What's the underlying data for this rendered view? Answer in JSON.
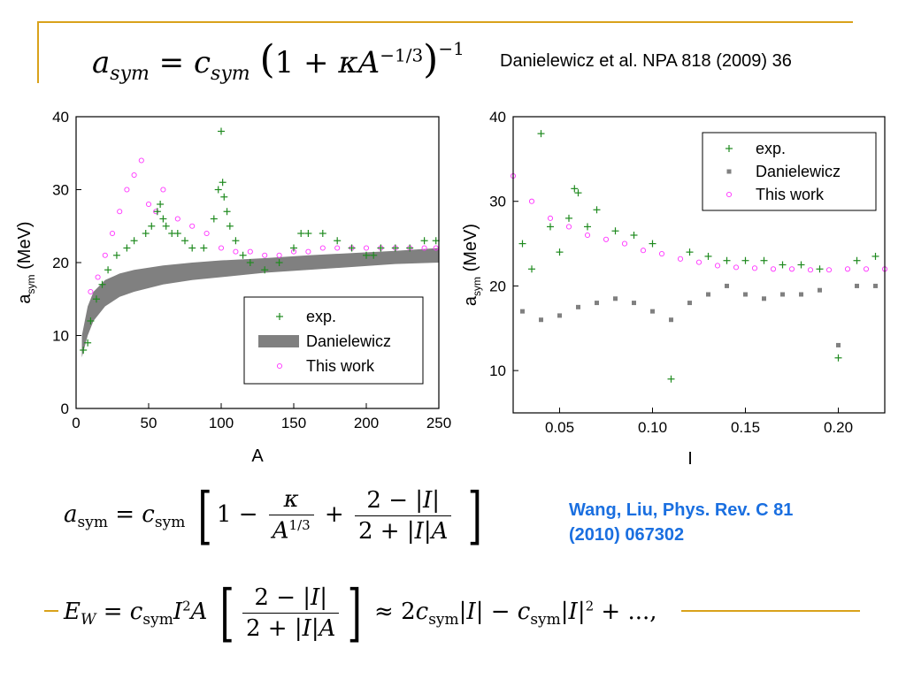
{
  "header": {
    "formula_top": "a_sym = c_sym (1 + κA^{-1/3})^{-1}",
    "citation": "Danielewicz et al. NPA 818 (2009) 36"
  },
  "reference": {
    "line1": "Wang, Liu, Phys. Rev. C 81",
    "line2": "(2010) 067302",
    "color": "#1a6fe0"
  },
  "formula_mid": "a_sym = c_sym [1 − κ/A^{1/3} + (2−|I|)/(2+|I|A)]",
  "formula_bottom": "E_W = c_sym I^2 A [(2−|I|)/(2+|I|A)] ≈ 2c_sym|I| − c_sym|I|^2 + ...,",
  "colors": {
    "accent": "#d9a21b",
    "exp": "#1f8a1f",
    "danielewicz": "#808080",
    "this_work": "#ff33ff"
  },
  "chart_data": [
    {
      "type": "scatter",
      "xlabel": "A",
      "ylabel": "a_sym (MeV)",
      "xlim": [
        0,
        250
      ],
      "ylim": [
        0,
        40
      ],
      "xticks": [
        "0",
        "50",
        "100",
        "150",
        "200",
        "250"
      ],
      "yticks": [
        "0",
        "10",
        "20",
        "30",
        "40"
      ],
      "legend_position": "bottom-right",
      "legend": [
        "exp.",
        "Danielewicz",
        "This work"
      ],
      "series": [
        {
          "name": "exp.",
          "x": [
            5,
            8,
            10,
            14,
            18,
            22,
            28,
            35,
            40,
            48,
            52,
            56,
            58,
            60,
            62,
            66,
            70,
            75,
            80,
            88,
            95,
            98,
            100,
            101,
            102,
            104,
            106,
            110,
            115,
            120,
            130,
            140,
            150,
            155,
            160,
            170,
            180,
            190,
            200,
            205,
            210,
            220,
            230,
            240,
            248
          ],
          "y": [
            8,
            9,
            12,
            15,
            17,
            19,
            21,
            22,
            23,
            24,
            25,
            27,
            28,
            26,
            25,
            24,
            24,
            23,
            22,
            22,
            26,
            30,
            38,
            31,
            29,
            27,
            25,
            23,
            21,
            20,
            19,
            20,
            22,
            24,
            24,
            24,
            23,
            22,
            21,
            21,
            22,
            22,
            22,
            23,
            23
          ]
        },
        {
          "name": "Danielewicz",
          "A": [
            4,
            8,
            12,
            20,
            30,
            40,
            60,
            80,
            100,
            130,
            160,
            190,
            220,
            250
          ],
          "lower": [
            7,
            10,
            12,
            14,
            15.3,
            16,
            17,
            17.6,
            18,
            18.6,
            19,
            19.4,
            19.8,
            20
          ],
          "upper": [
            10,
            14,
            16,
            17.6,
            18.5,
            19,
            19.6,
            20,
            20.3,
            20.6,
            21,
            21.3,
            21.6,
            22
          ]
        },
        {
          "name": "This work",
          "x": [
            10,
            15,
            20,
            25,
            30,
            35,
            40,
            45,
            50,
            55,
            60,
            70,
            80,
            90,
            100,
            110,
            120,
            130,
            140,
            150,
            160,
            170,
            180,
            190,
            200,
            210,
            220,
            230,
            240,
            248
          ],
          "y": [
            16,
            18,
            21,
            24,
            27,
            30,
            32,
            34,
            28,
            27,
            30,
            26,
            25,
            24,
            22,
            21.5,
            21.5,
            21,
            21,
            21.5,
            21.5,
            22,
            22,
            22,
            22,
            22,
            22,
            22,
            22,
            22
          ]
        }
      ]
    },
    {
      "type": "scatter",
      "xlabel": "I",
      "ylabel": "a_sym (MeV)",
      "xlim": [
        0.025,
        0.225
      ],
      "ylim": [
        5,
        40
      ],
      "xticks": [
        "0.05",
        "0.10",
        "0.15",
        "0.20"
      ],
      "yticks": [
        "10",
        "20",
        "30",
        "40"
      ],
      "legend_position": "top-right",
      "legend": [
        "exp.",
        "Danielewicz",
        "This work"
      ],
      "series": [
        {
          "name": "exp.",
          "x": [
            0.03,
            0.035,
            0.04,
            0.045,
            0.05,
            0.055,
            0.058,
            0.06,
            0.065,
            0.07,
            0.08,
            0.09,
            0.1,
            0.11,
            0.12,
            0.13,
            0.14,
            0.15,
            0.16,
            0.17,
            0.18,
            0.19,
            0.2,
            0.21,
            0.22
          ],
          "y": [
            25,
            22,
            38,
            27,
            24,
            28,
            31.5,
            31,
            27,
            29,
            26.5,
            26,
            25,
            9,
            24,
            23.5,
            23,
            23,
            23,
            22.5,
            22.5,
            22,
            11.5,
            23,
            23.5
          ]
        },
        {
          "name": "Danielewicz",
          "x": [
            0.03,
            0.04,
            0.05,
            0.06,
            0.07,
            0.08,
            0.09,
            0.1,
            0.11,
            0.12,
            0.13,
            0.14,
            0.15,
            0.16,
            0.17,
            0.18,
            0.19,
            0.2,
            0.21,
            0.22
          ],
          "y": [
            17,
            16,
            16.5,
            17.5,
            18,
            18.5,
            18,
            17,
            16,
            18,
            19,
            20,
            19,
            18.5,
            19,
            19,
            19.5,
            13,
            20,
            20
          ]
        },
        {
          "name": "This work",
          "x": [
            0.025,
            0.035,
            0.045,
            0.055,
            0.065,
            0.075,
            0.085,
            0.095,
            0.105,
            0.115,
            0.125,
            0.135,
            0.145,
            0.155,
            0.165,
            0.175,
            0.185,
            0.195,
            0.205,
            0.215,
            0.225
          ],
          "y": [
            33,
            30,
            28,
            27,
            26,
            25.5,
            25,
            24.2,
            23.8,
            23.2,
            22.8,
            22.4,
            22.2,
            22.1,
            22,
            22,
            21.9,
            21.9,
            22,
            22,
            22
          ]
        }
      ]
    }
  ]
}
